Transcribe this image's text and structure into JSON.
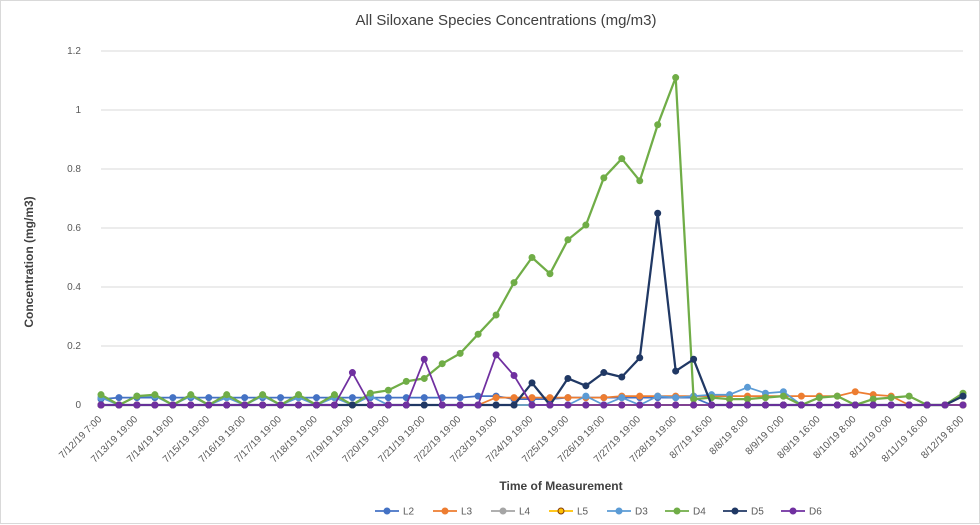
{
  "chart_data": {
    "type": "line",
    "title": "All Siloxane Species Concentrations (mg/m3)",
    "xlabel": "Time of Measurement",
    "ylabel": "Concentration (mg/m3)",
    "ylim": [
      0,
      1.2
    ],
    "yticks": [
      "0",
      "0.2",
      "0.4",
      "0.6",
      "0.8",
      "1",
      "1.2"
    ],
    "grid": true,
    "legend_position": "bottom",
    "x_tick_labels": [
      "7/12/19 7:00",
      "7/13/19 19:00",
      "7/14/19 19:00",
      "7/15/19 19:00",
      "7/16/19 19:00",
      "7/17/19 19:00",
      "7/18/19 19:00",
      "7/19/19 19:00",
      "7/20/19 19:00",
      "7/21/19 19:00",
      "7/22/19 19:00",
      "7/23/19 19:00",
      "7/24/19 19:00",
      "7/25/19 19:00",
      "7/26/19 19:00",
      "7/27/19 19:00",
      "7/28/19 19:00",
      "8/7/19 16:00",
      "8/8/19 8:00",
      "8/9/19 0:00",
      "8/9/19 16:00",
      "8/10/19 8:00",
      "8/11/19 0:00",
      "8/11/19 16:00",
      "8/12/19 8:00"
    ],
    "x_tick_points": [
      0,
      2,
      4,
      6,
      8,
      10,
      12,
      14,
      16,
      18,
      20,
      22,
      24,
      26,
      28,
      30,
      32,
      34,
      36,
      38,
      40,
      42,
      44,
      46,
      48
    ],
    "num_points": 49,
    "series": [
      {
        "name": "L2",
        "color": "#4472c4",
        "marker_fill": "#4472c4",
        "marker_stroke": "#4472c4",
        "values": [
          0.02,
          0.025,
          0.025,
          0.025,
          0.025,
          0.025,
          0.025,
          0.025,
          0.025,
          0.025,
          0.025,
          0.025,
          0.025,
          0.025,
          0.025,
          0.025,
          0.025,
          0.025,
          0.025,
          0.025,
          0.025,
          0.03,
          0.03,
          0.02,
          0.02,
          0.02,
          0.025,
          0.025,
          0.025,
          0.025,
          0.025,
          0.025,
          0.025,
          0.025,
          0.0,
          0.0,
          0.0,
          0.0,
          0.0,
          0.0,
          0.0,
          0.0,
          0.0,
          0.0,
          0.0,
          0.0,
          0.0,
          0.0,
          0.03
        ]
      },
      {
        "name": "L3",
        "color": "#ed7d31",
        "marker_fill": "#ed7d31",
        "marker_stroke": "#ed7d31",
        "values": [
          0.0,
          0.0,
          0.0,
          0.0,
          0.0,
          0.0,
          0.0,
          0.0,
          0.0,
          0.0,
          0.0,
          0.0,
          0.0,
          0.0,
          0.0,
          0.0,
          0.0,
          0.0,
          0.0,
          0.0,
          0.0,
          0.0,
          0.025,
          0.025,
          0.025,
          0.025,
          0.025,
          0.025,
          0.025,
          0.03,
          0.03,
          0.03,
          0.03,
          0.03,
          0.03,
          0.03,
          0.03,
          0.03,
          0.03,
          0.03,
          0.03,
          0.03,
          0.045,
          0.035,
          0.03,
          0.0,
          0.0,
          0.0,
          0.0
        ]
      },
      {
        "name": "L4",
        "color": "#a5a5a5",
        "marker_fill": "#a5a5a5",
        "marker_stroke": "#a5a5a5",
        "values": [
          0.0,
          0.0,
          0.0,
          0.0,
          0.0,
          0.0,
          0.0,
          0.0,
          0.0,
          0.0,
          0.0,
          0.0,
          0.0,
          0.0,
          0.0,
          0.0,
          0.0,
          0.0,
          0.0,
          0.0,
          0.0,
          0.0,
          0.0,
          0.0,
          0.0,
          0.0,
          0.0,
          0.0,
          0.0,
          0.0,
          0.0,
          0.0,
          0.0,
          0.0,
          0.0,
          0.0,
          0.0,
          0.0,
          0.0,
          0.0,
          0.0,
          0.0,
          0.0,
          0.0,
          0.0,
          0.0,
          0.0,
          0.0,
          0.0
        ]
      },
      {
        "name": "L5",
        "color": "#ffc000",
        "marker_fill": "#ffc000",
        "marker_stroke": "#843c0c",
        "values": [
          0.0,
          0.0,
          0.0,
          0.0,
          0.0,
          0.0,
          0.0,
          0.0,
          0.0,
          0.0,
          0.0,
          0.0,
          0.0,
          0.0,
          0.0,
          0.0,
          0.0,
          0.0,
          0.0,
          0.0,
          0.0,
          0.0,
          0.0,
          0.0,
          0.0,
          0.0,
          0.0,
          0.0,
          0.0,
          0.0,
          0.0,
          0.0,
          0.0,
          0.0,
          0.0,
          0.0,
          0.0,
          0.0,
          0.0,
          0.0,
          0.0,
          0.0,
          0.0,
          0.0,
          0.0,
          0.0,
          0.0,
          0.0,
          0.0
        ]
      },
      {
        "name": "D3",
        "color": "#5b9bd5",
        "marker_fill": "#5b9bd5",
        "marker_stroke": "#5b9bd5",
        "values": [
          0.025,
          0.0,
          0.03,
          0.03,
          0.0,
          0.03,
          0.0,
          0.025,
          0.0,
          0.03,
          0.0,
          0.025,
          0.0,
          0.025,
          0.0,
          0.03,
          0.0,
          0.0,
          0.0,
          0.0,
          0.0,
          0.0,
          0.0,
          0.0,
          0.0,
          0.0,
          0.0,
          0.03,
          0.0,
          0.025,
          0.0,
          0.03,
          0.025,
          0.03,
          0.035,
          0.035,
          0.06,
          0.04,
          0.045,
          0.0,
          0.0,
          0.0,
          0.0,
          0.0,
          0.0,
          0.0,
          0.0,
          0.0,
          0.03
        ]
      },
      {
        "name": "D4",
        "color": "#70ad47",
        "marker_fill": "#70ad47",
        "marker_stroke": "#70ad47",
        "values": [
          0.035,
          0.0,
          0.03,
          0.035,
          0.0,
          0.035,
          0.0,
          0.035,
          0.0,
          0.035,
          0.0,
          0.035,
          0.0,
          0.035,
          0.0,
          0.04,
          0.05,
          0.08,
          0.09,
          0.14,
          0.175,
          0.24,
          0.305,
          0.415,
          0.5,
          0.445,
          0.56,
          0.61,
          0.77,
          0.835,
          0.76,
          0.95,
          1.11,
          0.02,
          0.025,
          0.02,
          0.02,
          0.025,
          0.03,
          0.0,
          0.025,
          0.03,
          0.0,
          0.02,
          0.025,
          0.03,
          0.0,
          0.0,
          0.04
        ]
      },
      {
        "name": "D5",
        "color": "#203864",
        "marker_fill": "#203864",
        "marker_stroke": "#203864",
        "values": [
          0.0,
          0.0,
          0.0,
          0.0,
          0.0,
          0.0,
          0.0,
          0.0,
          0.0,
          0.0,
          0.0,
          0.0,
          0.0,
          0.0,
          0.0,
          0.0,
          0.0,
          0.0,
          0.0,
          0.0,
          0.0,
          0.0,
          0.0,
          0.0,
          0.075,
          0.0,
          0.09,
          0.065,
          0.11,
          0.095,
          0.16,
          0.65,
          0.115,
          0.155,
          0.0,
          0.0,
          0.0,
          0.0,
          0.0,
          0.0,
          0.0,
          0.0,
          0.0,
          0.0,
          0.0,
          0.0,
          0.0,
          0.0,
          0.03
        ]
      },
      {
        "name": "D6",
        "color": "#7030a0",
        "marker_fill": "#7030a0",
        "marker_stroke": "#7030a0",
        "values": [
          0.0,
          0.0,
          0.0,
          0.0,
          0.0,
          0.0,
          0.0,
          0.0,
          0.0,
          0.0,
          0.0,
          0.0,
          0.0,
          0.0,
          0.11,
          0.0,
          0.0,
          0.0,
          0.155,
          0.0,
          0.0,
          0.0,
          0.17,
          0.1,
          0.0,
          0.0,
          0.0,
          0.0,
          0.0,
          0.0,
          0.0,
          0.0,
          0.0,
          0.0,
          0.0,
          0.0,
          0.0,
          0.0,
          0.0,
          0.0,
          0.0,
          0.0,
          0.0,
          0.0,
          0.0,
          0.0,
          0.0,
          0.0,
          0.0
        ]
      }
    ]
  }
}
